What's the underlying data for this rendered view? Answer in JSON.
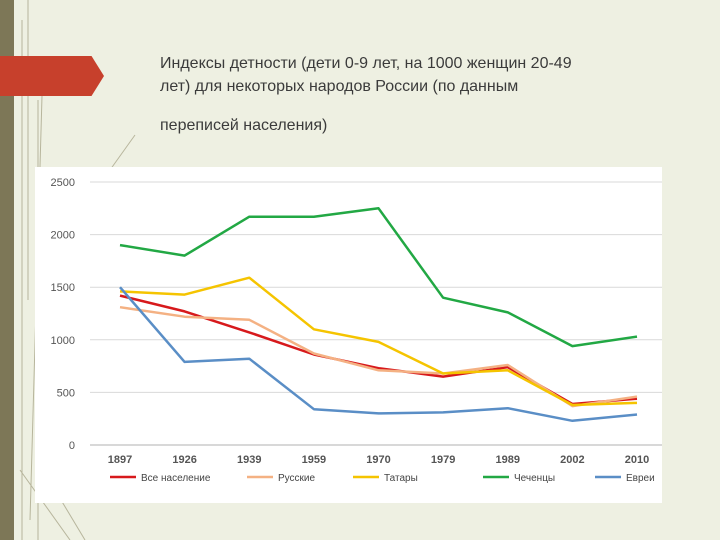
{
  "slide": {
    "title_lines": [
      "Индексы детности (дети 0-9 лет, на 1000 женщин 20-49",
      "лет) для некоторых народов России (по данным",
      "переписей населения)"
    ]
  },
  "colors": {
    "background": "#eef0e2",
    "sidebar": "#7d7757",
    "accent": "#c7402c"
  },
  "chart_data": {
    "type": "line",
    "categories": [
      "1897",
      "1926",
      "1939",
      "1959",
      "1970",
      "1979",
      "1989",
      "2002",
      "2010"
    ],
    "ylim": [
      0,
      2500
    ],
    "yticks": [
      "0",
      "500",
      "1000",
      "1500",
      "2000",
      "2500"
    ],
    "grid": true,
    "legend_position": "bottom",
    "series": [
      {
        "name": "Все население",
        "color": "#d7191c",
        "values": [
          1420,
          1270,
          1070,
          860,
          730,
          650,
          740,
          390,
          440
        ]
      },
      {
        "name": "Русские",
        "color": "#f4b183",
        "values": [
          1310,
          1220,
          1190,
          870,
          710,
          680,
          760,
          370,
          460
        ]
      },
      {
        "name": "Татары",
        "color": "#f5c400",
        "values": [
          1460,
          1430,
          1590,
          1100,
          980,
          680,
          710,
          380,
          400
        ]
      },
      {
        "name": "Чеченцы",
        "color": "#22a844",
        "values": [
          1900,
          1800,
          2170,
          2170,
          2250,
          1400,
          1260,
          940,
          1030
        ]
      },
      {
        "name": "Евреи",
        "color": "#5a8ec6",
        "values": [
          1500,
          790,
          820,
          340,
          300,
          310,
          350,
          230,
          290
        ]
      }
    ]
  }
}
